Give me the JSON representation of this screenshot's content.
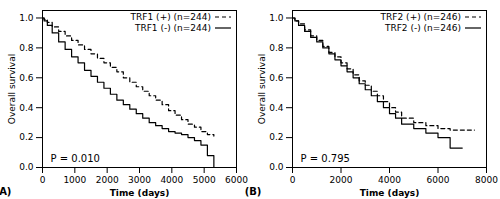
{
  "chart_data": [
    {
      "type": "step",
      "title": "(A)",
      "x_label": "Time (days)",
      "y_label": "Overall survival",
      "annotations": [
        "P = 0.010"
      ],
      "xlim": [
        0,
        6000
      ],
      "xticks": [
        0,
        1000,
        2000,
        3000,
        4000,
        5000,
        6000
      ],
      "ylim": [
        0.0,
        1.05
      ],
      "yticks": [
        {
          "value": 0.0,
          "label": "0.0"
        },
        0.2,
        0.4,
        0.6,
        0.8,
        {
          "value": 1.0,
          "label": "1.0"
        }
      ],
      "grid": false,
      "legend": "upper right",
      "series": [
        {
          "name": "TRF1 (+) (n=244)",
          "color": "#000000",
          "line_style": "dashed",
          "x": [
            0,
            50,
            150,
            300,
            500,
            700,
            900,
            1100,
            1300,
            1500,
            1700,
            1900,
            2100,
            2300,
            2500,
            2700,
            2900,
            3100,
            3300,
            3500,
            3700,
            3900,
            4100,
            4300,
            4500,
            4700,
            4900,
            5100,
            5300
          ],
          "values": [
            1.0,
            0.99,
            0.97,
            0.94,
            0.91,
            0.88,
            0.85,
            0.82,
            0.79,
            0.76,
            0.73,
            0.7,
            0.67,
            0.64,
            0.6,
            0.57,
            0.54,
            0.51,
            0.48,
            0.45,
            0.42,
            0.38,
            0.35,
            0.32,
            0.29,
            0.27,
            0.24,
            0.22,
            0.21
          ]
        },
        {
          "name": "TRF1 (-) (n=244)",
          "color": "#000000",
          "line_style": "solid",
          "x": [
            0,
            50,
            150,
            300,
            500,
            700,
            900,
            1100,
            1300,
            1500,
            1700,
            1900,
            2100,
            2300,
            2500,
            2700,
            2900,
            3100,
            3300,
            3500,
            3700,
            3900,
            4100,
            4300,
            4500,
            4700,
            4900,
            5100,
            5300
          ],
          "values": [
            1.0,
            0.98,
            0.95,
            0.9,
            0.84,
            0.79,
            0.74,
            0.7,
            0.65,
            0.61,
            0.57,
            0.53,
            0.49,
            0.45,
            0.42,
            0.39,
            0.36,
            0.33,
            0.3,
            0.28,
            0.26,
            0.24,
            0.23,
            0.22,
            0.2,
            0.18,
            0.15,
            0.08,
            0.0
          ]
        }
      ]
    },
    {
      "type": "step",
      "title": "(B)",
      "x_label": "Time (days)",
      "y_label": "Overall survival",
      "annotations": [
        "P = 0.795"
      ],
      "xlim": [
        0,
        8000
      ],
      "xticks": [
        0,
        2000,
        4000,
        6000,
        8000
      ],
      "ylim": [
        0.0,
        1.05
      ],
      "yticks": [
        {
          "value": 0.0,
          "label": "0.0"
        },
        0.2,
        0.4,
        0.6,
        0.8,
        {
          "value": 1.0,
          "label": "1.0"
        }
      ],
      "grid": false,
      "legend": "upper right",
      "series": [
        {
          "name": "TRF2 (+) (n=246)",
          "color": "#000000",
          "line_style": "dashed",
          "x": [
            0,
            100,
            250,
            500,
            750,
            1000,
            1250,
            1500,
            1750,
            2000,
            2250,
            2500,
            2750,
            3000,
            3250,
            3500,
            3750,
            4000,
            4250,
            4500,
            5000,
            5500,
            6000,
            6500,
            7000,
            7500
          ],
          "values": [
            1.0,
            0.98,
            0.96,
            0.92,
            0.88,
            0.85,
            0.81,
            0.77,
            0.74,
            0.7,
            0.66,
            0.62,
            0.58,
            0.55,
            0.51,
            0.48,
            0.44,
            0.4,
            0.37,
            0.33,
            0.3,
            0.28,
            0.26,
            0.25,
            0.25,
            0.25
          ]
        },
        {
          "name": "TRF2 (-) (n=246)",
          "color": "#000000",
          "line_style": "solid",
          "x": [
            0,
            100,
            250,
            500,
            750,
            1000,
            1250,
            1500,
            1750,
            2000,
            2250,
            2500,
            2750,
            3000,
            3250,
            3500,
            3750,
            4000,
            4250,
            4500,
            5000,
            5500,
            6000,
            6500,
            7000
          ],
          "values": [
            1.0,
            0.98,
            0.95,
            0.91,
            0.87,
            0.84,
            0.8,
            0.76,
            0.72,
            0.68,
            0.64,
            0.6,
            0.56,
            0.52,
            0.48,
            0.44,
            0.4,
            0.36,
            0.33,
            0.29,
            0.26,
            0.23,
            0.2,
            0.13,
            0.13
          ]
        }
      ]
    }
  ]
}
